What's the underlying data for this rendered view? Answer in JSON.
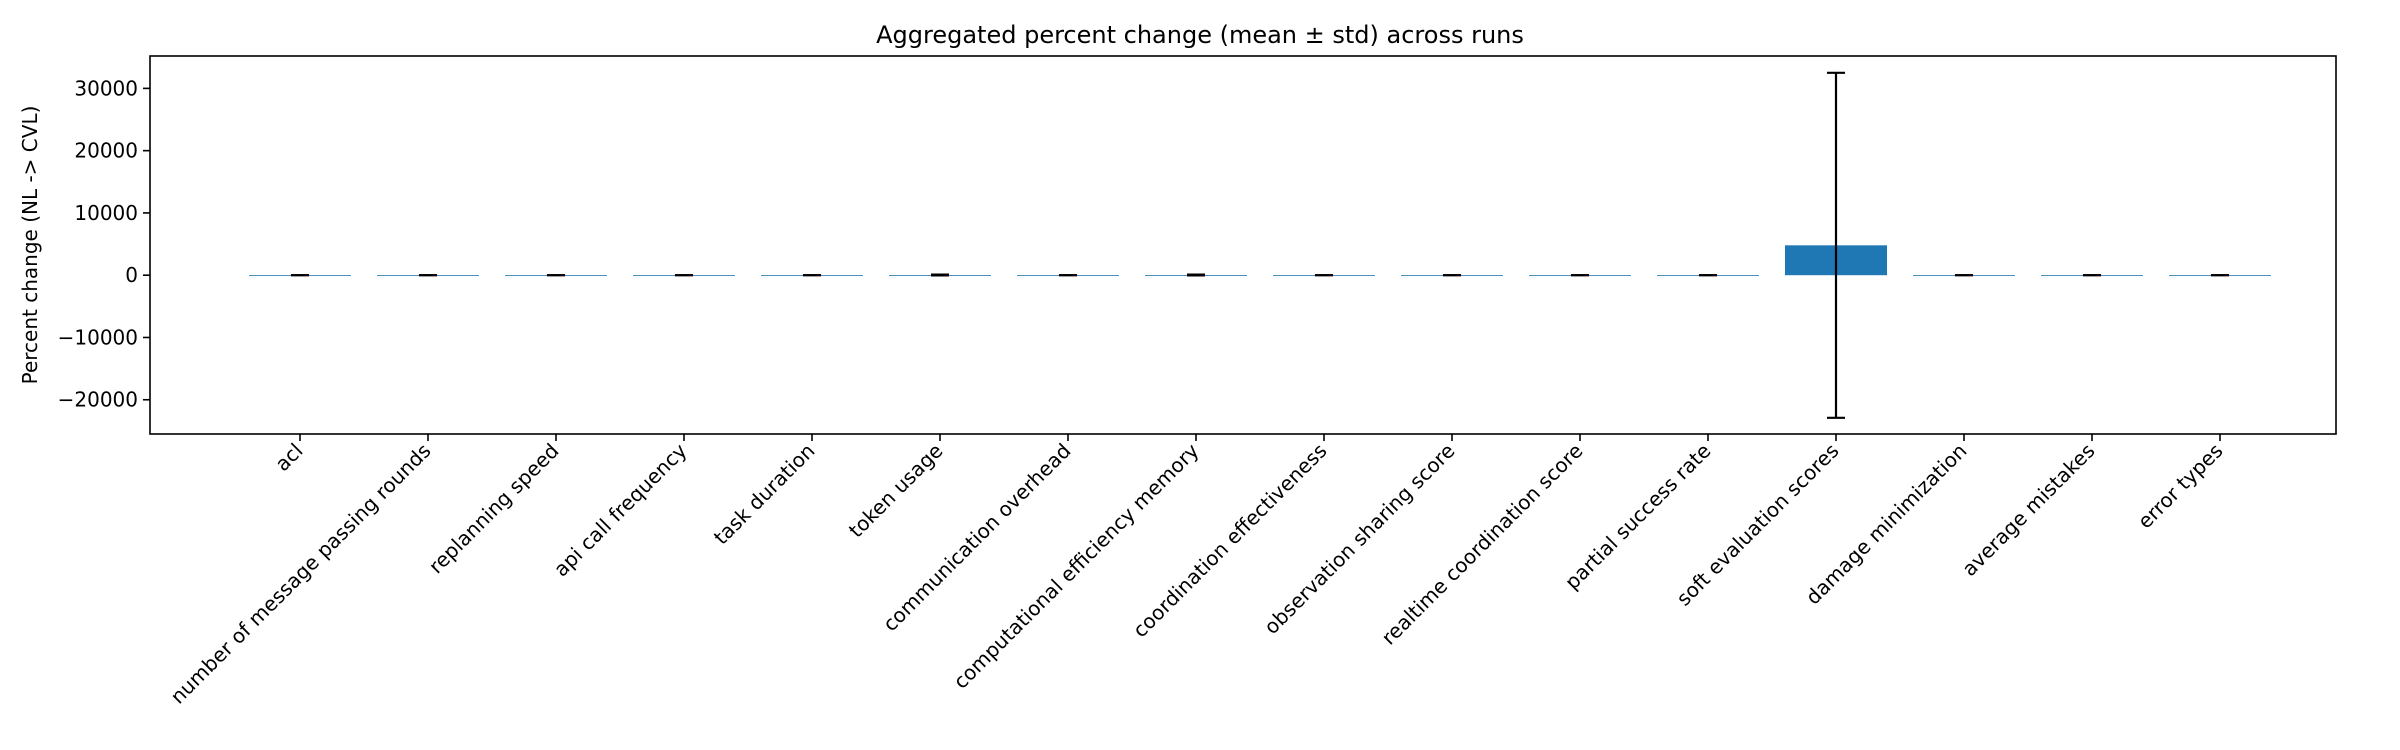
{
  "chart_data": {
    "type": "bar",
    "title": "Aggregated percent change (mean ± std) across runs",
    "xlabel": "",
    "ylabel": "Percent change (NL -> CVL)",
    "ylim": [
      -25500,
      35200
    ],
    "yticks": [
      -20000,
      -10000,
      0,
      10000,
      20000,
      30000
    ],
    "ytick_labels": [
      "−20000",
      "−10000",
      "0",
      "10000",
      "20000",
      "30000"
    ],
    "grid": false,
    "bar_color": "#1f77b4",
    "error_color": "#000000",
    "categories": [
      "acl",
      "number of message passing rounds",
      "replanning speed",
      "api call frequency",
      "task duration",
      "token usage",
      "communication overhead",
      "computational efficiency memory",
      "coordination effectiveness",
      "observation sharing score",
      "realtime coordination score",
      "partial success rate",
      "soft evaluation scores",
      "damage minimization",
      "average mistakes",
      "error types"
    ],
    "values": [
      0,
      0,
      0,
      0,
      0,
      30,
      0,
      30,
      0,
      0,
      0,
      0,
      4800,
      0,
      0,
      0
    ],
    "errors": [
      0,
      0,
      0,
      0,
      0,
      60,
      0,
      60,
      0,
      0,
      0,
      0,
      27700,
      0,
      0,
      0
    ]
  }
}
